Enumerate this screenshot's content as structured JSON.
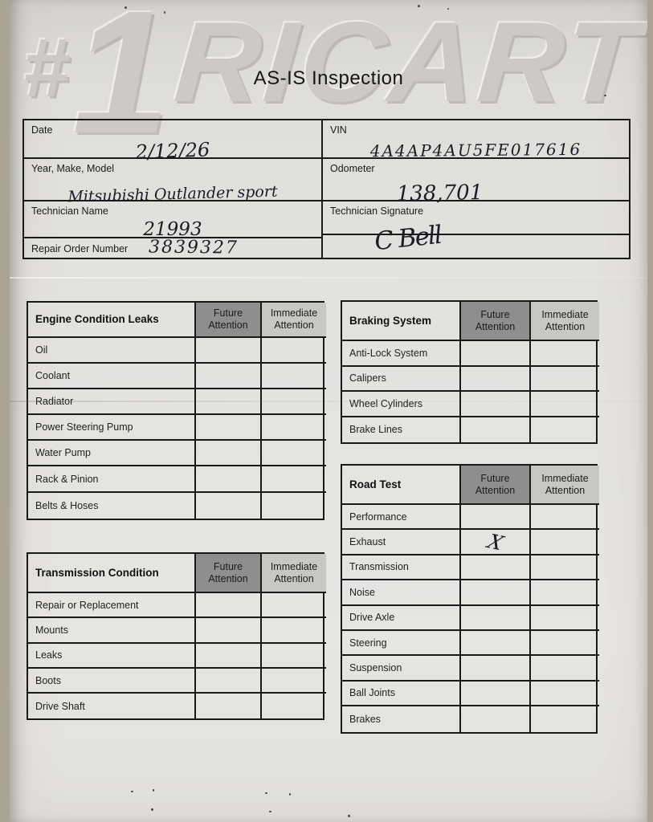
{
  "title": "AS-IS Inspection",
  "watermark": {
    "hash": "#",
    "one": "1",
    "brand": "RICART"
  },
  "info": {
    "date_label": "Date",
    "date_value": "2/12/26",
    "ymm_label": "Year, Make, Model",
    "ymm_value": "Mitsubishi Outlander sport",
    "tech_name_label": "Technician Name",
    "tech_name_value": "21993",
    "ro_label": "Repair Order Number",
    "ro_value": "3839327",
    "vin_label": "VIN",
    "vin_value": "4A4AP4AU5FE017616",
    "odometer_label": "Odometer",
    "odometer_value": "138,701",
    "tech_sig_label": "Technician Signature",
    "tech_sig_value": "C Bell"
  },
  "columns": {
    "future": "Future Attention",
    "immediate": "Immediate Attention"
  },
  "tables": {
    "engine": {
      "title": "Engine Condition Leaks",
      "rows": [
        {
          "label": "Oil",
          "future": "",
          "immediate": ""
        },
        {
          "label": "Coolant",
          "future": "",
          "immediate": ""
        },
        {
          "label": "Radiator",
          "future": "",
          "immediate": ""
        },
        {
          "label": "Power Steering Pump",
          "future": "",
          "immediate": ""
        },
        {
          "label": "Water Pump",
          "future": "",
          "immediate": ""
        },
        {
          "label": "Rack & Pinion",
          "future": "",
          "immediate": ""
        },
        {
          "label": "Belts & Hoses",
          "future": "",
          "immediate": ""
        }
      ]
    },
    "braking": {
      "title": "Braking System",
      "rows": [
        {
          "label": "Anti-Lock System",
          "future": "",
          "immediate": ""
        },
        {
          "label": "Calipers",
          "future": "",
          "immediate": ""
        },
        {
          "label": "Wheel Cylinders",
          "future": "",
          "immediate": ""
        },
        {
          "label": "Brake Lines",
          "future": "",
          "immediate": ""
        }
      ]
    },
    "transmission": {
      "title": "Transmission Condition",
      "rows": [
        {
          "label": "Repair or Replacement",
          "future": "",
          "immediate": ""
        },
        {
          "label": "Mounts",
          "future": "",
          "immediate": ""
        },
        {
          "label": "Leaks",
          "future": "",
          "immediate": ""
        },
        {
          "label": "Boots",
          "future": "",
          "immediate": ""
        },
        {
          "label": "Drive Shaft",
          "future": "",
          "immediate": ""
        }
      ]
    },
    "road_test": {
      "title": "Road Test",
      "rows": [
        {
          "label": "Performance",
          "future": "",
          "immediate": ""
        },
        {
          "label": "Exhaust",
          "future": "X",
          "immediate": ""
        },
        {
          "label": "Transmission",
          "future": "",
          "immediate": ""
        },
        {
          "label": "Noise",
          "future": "",
          "immediate": ""
        },
        {
          "label": "Drive Axle",
          "future": "",
          "immediate": ""
        },
        {
          "label": "Steering",
          "future": "",
          "immediate": ""
        },
        {
          "label": "Suspension",
          "future": "",
          "immediate": ""
        },
        {
          "label": "Ball Joints",
          "future": "",
          "immediate": ""
        },
        {
          "label": "Brakes",
          "future": "",
          "immediate": ""
        }
      ]
    }
  },
  "colors": {
    "photo_background": "#aba394",
    "paper": "#e4e2df",
    "table_border": "#1a1a1a",
    "future_header_bg": "#8f8e8c",
    "immediate_header_bg": "#c9c7c4",
    "ink": "#1d1c26",
    "watermark_gray": "#cdcac6"
  }
}
